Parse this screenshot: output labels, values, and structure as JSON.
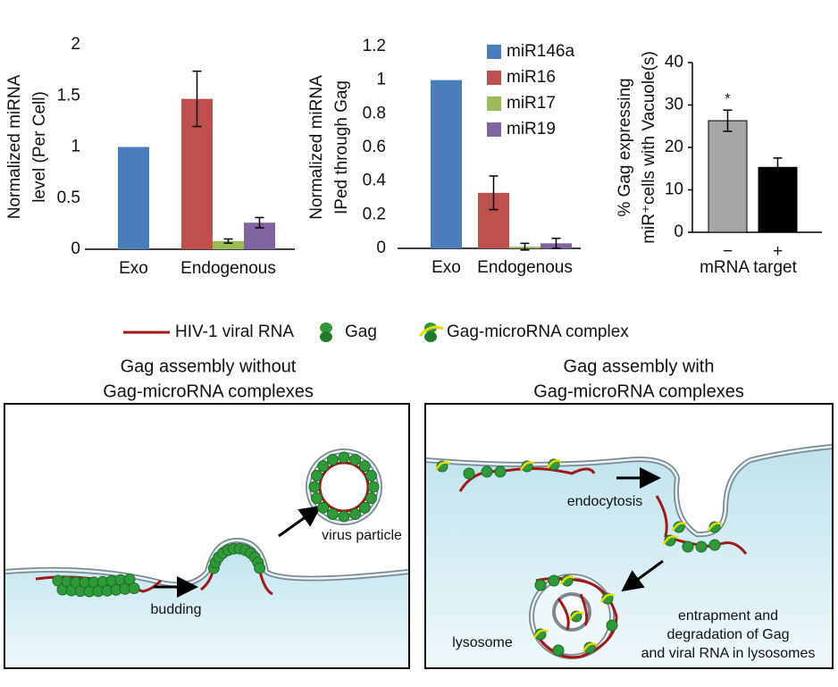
{
  "chart_data": [
    {
      "type": "bar",
      "y_label": [
        "Normalized miRNA",
        "level (Per Cell)"
      ],
      "categories": [
        "Exo",
        "Endogenous"
      ],
      "series": [
        {
          "color": "#4a7ebb",
          "values": [
            1,
            null
          ],
          "errors": [
            null,
            null
          ]
        },
        {
          "color": "#c0504d",
          "values": [
            null,
            1.47
          ],
          "errors": [
            null,
            0.27
          ]
        },
        {
          "color": "#9bbb59",
          "values": [
            null,
            0.08
          ],
          "errors": [
            null,
            0.02
          ]
        },
        {
          "color": "#8064a2",
          "values": [
            null,
            0.26
          ],
          "errors": [
            null,
            0.05
          ]
        }
      ],
      "ylim": [
        0,
        2
      ],
      "yticks": [
        0,
        0.5,
        1,
        1.5,
        2
      ]
    },
    {
      "type": "bar",
      "y_label": [
        "Normalized miRNA",
        "IPed through Gag"
      ],
      "categories": [
        "Exo",
        "Endogenous"
      ],
      "series": [
        {
          "name": "miR146a",
          "color": "#4a7ebb",
          "values": [
            1,
            null
          ],
          "errors": [
            null,
            null
          ]
        },
        {
          "name": "miR16",
          "color": "#c0504d",
          "values": [
            null,
            0.33
          ],
          "errors": [
            null,
            0.1
          ]
        },
        {
          "name": "miR17",
          "color": "#9bbb59",
          "values": [
            null,
            0.01
          ],
          "errors": [
            null,
            0.02
          ]
        },
        {
          "name": "miR19",
          "color": "#8064a2",
          "values": [
            null,
            0.03
          ],
          "errors": [
            null,
            0.03
          ]
        }
      ],
      "ylim": [
        0,
        1.2
      ],
      "yticks": [
        0,
        0.2,
        0.4,
        0.6,
        0.8,
        1,
        1.2
      ],
      "legend": "top-right"
    },
    {
      "type": "bar",
      "y_label": [
        "% Gag expressing",
        "miR⁺cells with Vacuole(s)"
      ],
      "x_label": "mRNA target",
      "categories": [
        "−",
        "+"
      ],
      "series": [
        {
          "colors": [
            "#a6a6a6",
            "#000000"
          ],
          "values": [
            26.3,
            15.3
          ],
          "errors": [
            2.5,
            2.2
          ]
        }
      ],
      "annotation": "*",
      "ylim": [
        0,
        40
      ],
      "yticks": [
        0,
        10,
        20,
        30,
        40
      ]
    }
  ],
  "diagram": {
    "legend": [
      "HIV-1 viral RNA",
      "Gag",
      "Gag-microRNA complex"
    ],
    "left_title": [
      "Gag assembly without",
      "Gag-microRNA complexes"
    ],
    "right_title": [
      "Gag assembly with",
      "Gag-microRNA complexes"
    ],
    "budding": "budding",
    "virus_particle": "virus particle",
    "endocytosis": "endocytosis",
    "lysosome": "lysosome",
    "entrapment": [
      "entrapment and",
      "degradation of Gag",
      "and viral RNA in lysosomes"
    ]
  }
}
